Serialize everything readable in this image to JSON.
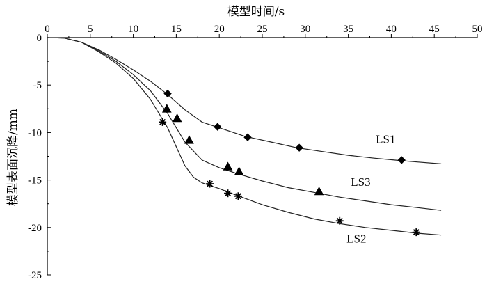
{
  "chart_data": {
    "type": "line",
    "xlabel": "模型时间/s",
    "ylabel": "模型表面沉降/mm",
    "xlim": [
      0,
      50
    ],
    "ylim": [
      -25,
      0
    ],
    "xticks": [
      "0",
      "5",
      "10",
      "15",
      "20",
      "25",
      "30",
      "35",
      "40",
      "45",
      "50"
    ],
    "yticks": [
      "0",
      "-5",
      "-10",
      "-15",
      "-20",
      "-25"
    ],
    "x_axis_position": "top",
    "grid": false,
    "series": [
      {
        "name": "LS1",
        "marker": "diamond",
        "x": [
          0,
          2,
          4,
          6,
          8,
          10,
          12,
          14,
          16,
          18,
          20,
          23,
          26,
          29,
          32,
          35,
          38,
          41,
          43,
          45.8
        ],
        "y": [
          0,
          -0.05,
          -0.5,
          -1.3,
          -2.3,
          -3.4,
          -4.6,
          -6.0,
          -7.6,
          -8.9,
          -9.5,
          -10.4,
          -11.0,
          -11.6,
          -12.0,
          -12.4,
          -12.7,
          -12.95,
          -13.1,
          -13.3
        ],
        "markers_x": [
          14,
          19.8,
          23.3,
          29.3,
          41.2
        ],
        "markers_y": [
          -5.9,
          -9.4,
          -10.5,
          -11.6,
          -12.9
        ]
      },
      {
        "name": "LS3",
        "marker": "triangle",
        "x": [
          0,
          2,
          4,
          6,
          8,
          10,
          12,
          14,
          16,
          18,
          20,
          22,
          25,
          28,
          31,
          34,
          37,
          40,
          43,
          45.8
        ],
        "y": [
          0,
          -0.05,
          -0.5,
          -1.4,
          -2.5,
          -3.9,
          -5.6,
          -8.0,
          -11.0,
          -12.9,
          -13.7,
          -14.3,
          -15.1,
          -15.8,
          -16.3,
          -16.8,
          -17.2,
          -17.6,
          -17.9,
          -18.2
        ],
        "markers_x": [
          13.9,
          15.1,
          16.5,
          21,
          22.3,
          31.6
        ],
        "markers_y": [
          -7.5,
          -8.5,
          -10.8,
          -13.6,
          -14.1,
          -16.2
        ]
      },
      {
        "name": "LS2",
        "marker": "asterisk",
        "x": [
          0,
          2,
          4,
          6,
          8,
          10,
          12,
          14,
          16,
          17,
          18,
          19,
          20,
          22,
          25,
          28,
          31,
          34,
          37,
          40,
          43,
          45.8
        ],
        "y": [
          0,
          -0.05,
          -0.5,
          -1.5,
          -2.7,
          -4.3,
          -6.5,
          -9.5,
          -13.5,
          -14.7,
          -15.3,
          -15.6,
          -15.9,
          -16.6,
          -17.6,
          -18.4,
          -19.1,
          -19.6,
          -20.0,
          -20.3,
          -20.6,
          -20.8
        ],
        "markers_x": [
          13.4,
          18.9,
          21,
          22.2,
          34,
          42.9
        ],
        "markers_y": [
          -8.9,
          -15.4,
          -16.4,
          -16.7,
          -19.3,
          -20.5
        ]
      }
    ],
    "series_label_positions": [
      {
        "name": "LS1",
        "x": 38.2,
        "y": -11.1
      },
      {
        "name": "LS3",
        "x": 35.3,
        "y": -15.6
      },
      {
        "name": "LS2",
        "x": 34.8,
        "y": -21.6
      }
    ]
  }
}
